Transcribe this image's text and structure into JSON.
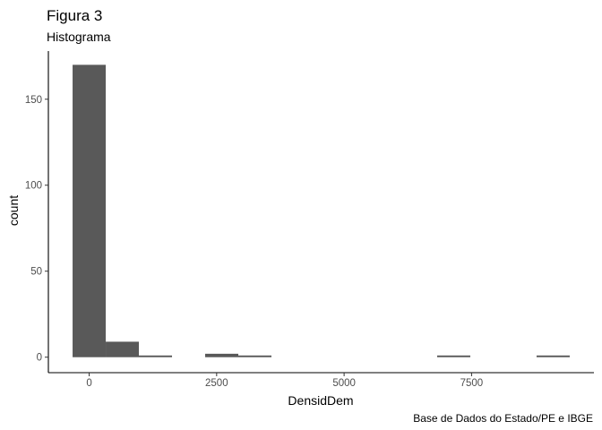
{
  "chart_data": {
    "type": "bar",
    "title": "Figura 3",
    "subtitle": "Histograma",
    "caption": "Base de Dados do Estado/PE e IBGE",
    "xlabel": "DensidDem",
    "ylabel": "count",
    "bins": [
      {
        "x0": -325,
        "x1": 325,
        "count": 170
      },
      {
        "x0": 325,
        "x1": 975,
        "count": 9
      },
      {
        "x0": 975,
        "x1": 1625,
        "count": 1
      },
      {
        "x0": 2275,
        "x1": 2925,
        "count": 2
      },
      {
        "x0": 2925,
        "x1": 3575,
        "count": 1
      },
      {
        "x0": 6825,
        "x1": 7475,
        "count": 1
      },
      {
        "x0": 8775,
        "x1": 9425,
        "count": 1
      }
    ],
    "xlim": [
      -800,
      9900
    ],
    "ylim": [
      -9,
      178
    ],
    "x_ticks": [
      0,
      2500,
      5000,
      7500
    ],
    "y_ticks": [
      0,
      50,
      100,
      150
    ],
    "bar_color": "#595959",
    "grid": false
  }
}
